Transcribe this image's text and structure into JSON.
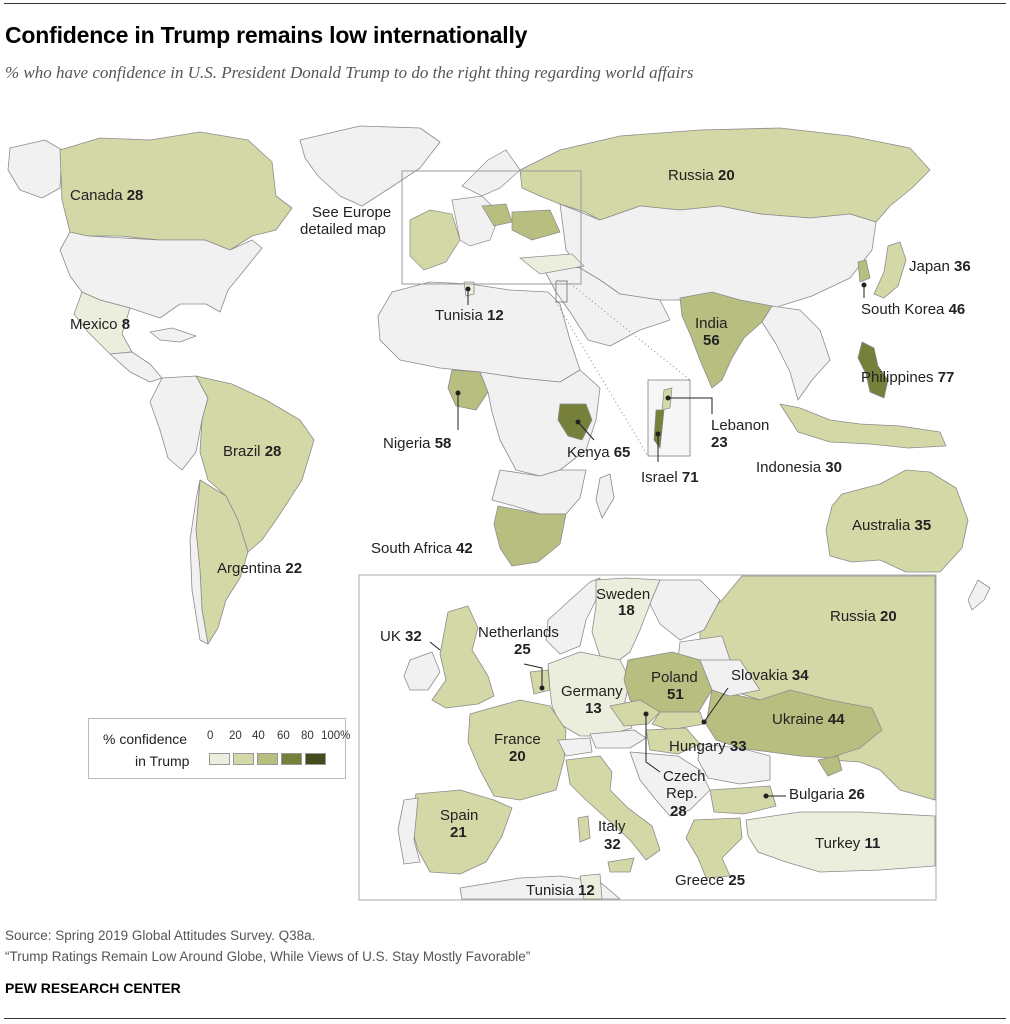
{
  "header": {
    "title": "Confidence in Trump remains low internationally",
    "subtitle": "% who have confidence in U.S. President Donald Trump to do the right thing regarding world affairs"
  },
  "callouts": {
    "europe_line1": "See Europe",
    "europe_line2": "detailed map"
  },
  "colors": {
    "bin_0_20": "#ebeedc",
    "bin_20_40": "#d4d8a6",
    "bin_40_60": "#b7be80",
    "bin_60_80": "#76803b",
    "bin_80_100": "#434b1c",
    "no_data": "#f1f1f1",
    "border": "#8c8c8c"
  },
  "legend": {
    "title_line1": "% confidence",
    "title_line2": "in Trump",
    "ticks": [
      "0",
      "20",
      "40",
      "60",
      "80",
      "100%"
    ]
  },
  "world": {
    "canada": {
      "name": "Canada",
      "value": "28"
    },
    "mexico": {
      "name": "Mexico",
      "value": "8"
    },
    "brazil": {
      "name": "Brazil",
      "value": "28"
    },
    "argentina": {
      "name": "Argentina",
      "value": "22"
    },
    "russia": {
      "name": "Russia",
      "value": "20"
    },
    "japan": {
      "name": "Japan",
      "value": "36"
    },
    "south_korea": {
      "name": "South Korea",
      "value": "46"
    },
    "india": {
      "name": "India",
      "value": "56"
    },
    "philippines": {
      "name": "Philippines",
      "value": "77"
    },
    "tunisia": {
      "name": "Tunisia",
      "value": "12"
    },
    "nigeria": {
      "name": "Nigeria",
      "value": "58"
    },
    "kenya": {
      "name": "Kenya",
      "value": "65"
    },
    "lebanon": {
      "name": "Lebanon",
      "value": "23"
    },
    "israel": {
      "name": "Israel",
      "value": "71"
    },
    "indonesia": {
      "name": "Indonesia",
      "value": "30"
    },
    "south_africa": {
      "name": "South Africa",
      "value": "42"
    },
    "australia": {
      "name": "Australia",
      "value": "35"
    }
  },
  "europe": {
    "sweden": {
      "name": "Sweden",
      "value": "18"
    },
    "russia": {
      "name": "Russia",
      "value": "20"
    },
    "uk": {
      "name": "UK",
      "value": "32"
    },
    "netherlands": {
      "name": "Netherlands",
      "value": "25"
    },
    "poland": {
      "name": "Poland",
      "value": "51"
    },
    "slovakia": {
      "name": "Slovakia",
      "value": "34"
    },
    "germany": {
      "name": "Germany",
      "value": "13"
    },
    "ukraine": {
      "name": "Ukraine",
      "value": "44"
    },
    "france": {
      "name": "France",
      "value": "20"
    },
    "hungary": {
      "name": "Hungary",
      "value": "33"
    },
    "czech_line1": "Czech",
    "czech_line2": "Rep.",
    "czech_value": "28",
    "bulgaria": {
      "name": "Bulgaria",
      "value": "26"
    },
    "spain": {
      "name": "Spain",
      "value": "21"
    },
    "italy": {
      "name": "Italy",
      "value": "32"
    },
    "turkey": {
      "name": "Turkey",
      "value": "11"
    },
    "tunisia": {
      "name": "Tunisia",
      "value": "12"
    },
    "greece": {
      "name": "Greece",
      "value": "25"
    }
  },
  "footer": {
    "source": "Source: Spring 2019 Global Attitudes Survey. Q38a.",
    "report": "“Trump Ratings Remain Low Around Globe, While Views of U.S. Stay Mostly Favorable”",
    "brand": "PEW RESEARCH CENTER"
  }
}
